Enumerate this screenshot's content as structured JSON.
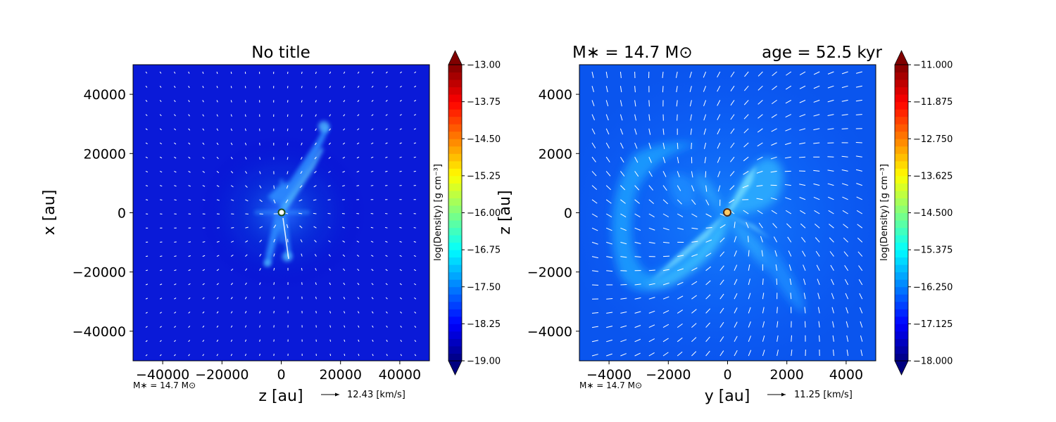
{
  "chart_data": [
    {
      "type": "heatmap",
      "title": "No title",
      "xlabel": "z [au]",
      "ylabel": "x [au]",
      "xlim": [
        -50000,
        50000
      ],
      "ylim": [
        -50000,
        50000
      ],
      "x_ticks": [
        -40000,
        -20000,
        0,
        20000,
        40000
      ],
      "y_ticks": [
        -40000,
        -20000,
        0,
        20000,
        40000
      ],
      "x_tick_labels": [
        "−40000",
        "−20000",
        "0",
        "20000",
        "40000"
      ],
      "y_tick_labels": [
        "−40000",
        "−20000",
        "0",
        "20000",
        "40000"
      ],
      "colorbar": {
        "label": "log(Density) [g cm⁻³]",
        "min": -19.0,
        "max": -13.0,
        "ticks": [
          -13.0,
          -13.75,
          -14.5,
          -15.25,
          -16.0,
          -16.75,
          -17.5,
          -18.25,
          -19.0
        ],
        "tick_labels": [
          "−13.00",
          "−13.75",
          "−14.50",
          "−15.25",
          "−16.00",
          "−16.75",
          "−17.50",
          "−18.25",
          "−19.00"
        ],
        "colormap": "jet"
      },
      "star": {
        "x": 0,
        "y": 0
      },
      "annotation_left": "M∗ = 14.7 M⊙",
      "velocity_key": "12.43 [km/s]"
    },
    {
      "type": "heatmap",
      "title_left": "M∗ = 14.7 M⊙",
      "title_right": "age = 52.5 kyr",
      "xlabel": "y [au]",
      "ylabel": "z [au]",
      "xlim": [
        -5000,
        5000
      ],
      "ylim": [
        -5000,
        5000
      ],
      "x_ticks": [
        -4000,
        -2000,
        0,
        2000,
        4000
      ],
      "y_ticks": [
        -4000,
        -2000,
        0,
        2000,
        4000
      ],
      "x_tick_labels": [
        "−4000",
        "−2000",
        "0",
        "2000",
        "4000"
      ],
      "y_tick_labels": [
        "−4000",
        "−2000",
        "0",
        "2000",
        "4000"
      ],
      "colorbar": {
        "label": "log(Density) [g cm⁻³]",
        "min": -18.0,
        "max": -11.0,
        "ticks": [
          -11.0,
          -11.875,
          -12.75,
          -13.625,
          -14.5,
          -15.375,
          -16.25,
          -17.125,
          -18.0
        ],
        "tick_labels": [
          "−11.000",
          "−11.875",
          "−12.750",
          "−13.625",
          "−14.500",
          "−15.375",
          "−16.250",
          "−17.125",
          "−18.000"
        ],
        "colormap": "jet"
      },
      "star": {
        "x": 0,
        "y": 0
      },
      "annotation_left": "M∗ = 14.7 M⊙",
      "velocity_key": "11.25 [km/s]"
    }
  ]
}
